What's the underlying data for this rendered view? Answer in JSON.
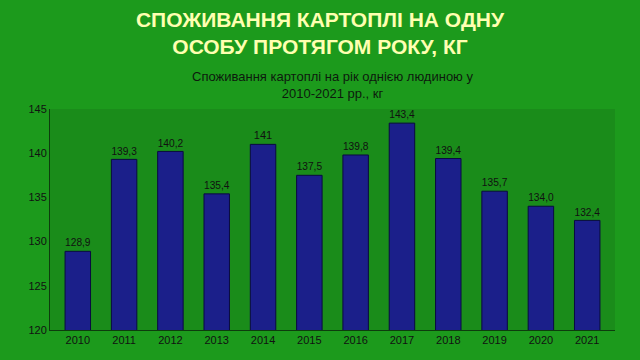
{
  "chart_data": {
    "type": "bar",
    "title": "СПОЖИВАННЯ КАРТОПЛІ НА ОДНУ ОСОБУ ПРОТЯГОМ РОКУ, КГ",
    "subtitle": "Споживання картоплі на рік однією людиною у 2010-2021 рр., кг",
    "categories": [
      "2010",
      "2011",
      "2012",
      "2013",
      "2014",
      "2015",
      "2016",
      "2017",
      "2018",
      "2019",
      "2020",
      "2021"
    ],
    "values": [
      128.9,
      139.3,
      140.2,
      135.4,
      141,
      137.5,
      139.8,
      143.4,
      139.4,
      135.7,
      134.0,
      132.4
    ],
    "value_labels": [
      "128,9",
      "139,3",
      "140,2",
      "135,4",
      "141",
      "137,5",
      "139,8",
      "143,4",
      "139,4",
      "135,7",
      "134,0",
      "132,4"
    ],
    "data_labels": true,
    "color": "#1b1f8a",
    "ylim": [
      120,
      145
    ],
    "yticks": [
      120,
      125,
      130,
      135,
      140,
      145
    ],
    "grid": false
  }
}
